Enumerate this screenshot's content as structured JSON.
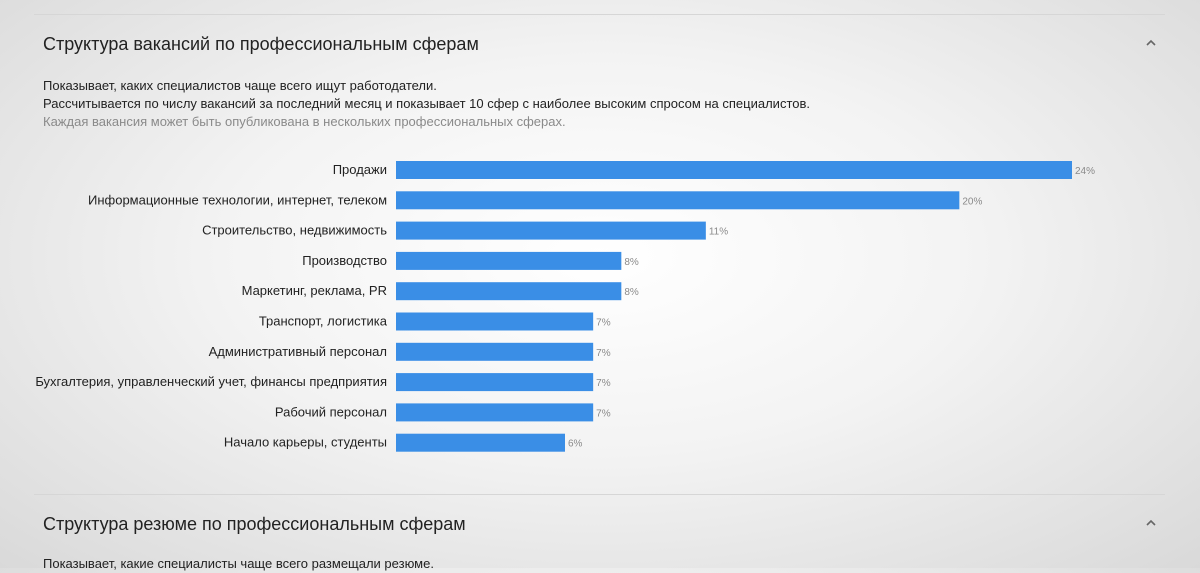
{
  "colors": {
    "bar": "#3a8ee6",
    "text": "#222222",
    "muted": "#8a8a8a"
  },
  "sections": [
    {
      "title": "Структура вакансий по профессиональным сферам",
      "collapse_icon": "chevron-up-icon",
      "description": [
        "Показывает, каких специалистов чаще всего ищут работодатели.",
        "Рассчитывается по числу вакансий за последний месяц и показывает 10 сфер с наиболее высоким спросом на специалистов.",
        "Каждая вакансия может быть опубликована в нескольких профессиональных сферах."
      ]
    },
    {
      "title": "Структура резюме по профессиональным сферам",
      "collapse_icon": "chevron-up-icon",
      "description": [
        "Показывает, какие специалисты чаще всего размещали резюме."
      ]
    }
  ],
  "chart_data": {
    "type": "bar",
    "orientation": "horizontal",
    "title": "",
    "xlabel": "",
    "ylabel": "",
    "grid": false,
    "categories": [
      "Продажи",
      "Информационные технологии, интернет, телеком",
      "Строительство, недвижимость",
      "Производство",
      "Маркетинг, реклама, PR",
      "Транспорт, логистика",
      "Административный персонал",
      "Бухгалтерия, управленческий учет, финансы предприятия",
      "Рабочий персонал",
      "Начало карьеры, студенты"
    ],
    "values": [
      24,
      20,
      11,
      8,
      8,
      7,
      7,
      7,
      7,
      6
    ],
    "value_labels": [
      "24%",
      "20%",
      "11%",
      "8%",
      "8%",
      "7%",
      "7%",
      "7%",
      "7%",
      "6%"
    ],
    "xlim": [
      0,
      24
    ]
  }
}
